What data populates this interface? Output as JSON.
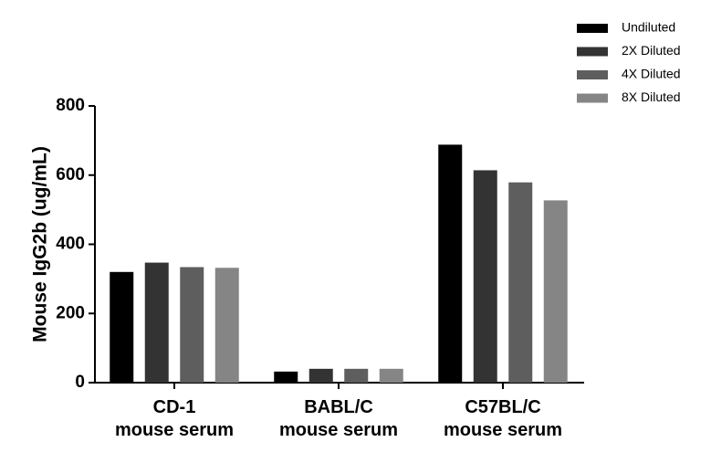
{
  "chart_data": {
    "type": "bar",
    "ylabel": "Mouse IgG2b (ug/mL)",
    "xlabel": "",
    "ylim": [
      0,
      800
    ],
    "yticks": [
      0,
      200,
      400,
      600,
      800
    ],
    "categories": [
      [
        "CD-1",
        "mouse serum"
      ],
      [
        "BABL/C",
        "mouse serum"
      ],
      [
        "C57BL/C",
        "mouse serum"
      ]
    ],
    "series": [
      {
        "name": "Undiluted",
        "color": "#000000",
        "values": [
          320,
          32,
          688
        ]
      },
      {
        "name": "2X Diluted",
        "color": "#333333",
        "values": [
          347,
          40,
          614
        ]
      },
      {
        "name": "4X Diluted",
        "color": "#5e5e5e",
        "values": [
          334,
          40,
          579
        ]
      },
      {
        "name": "8X Diluted",
        "color": "#858585",
        "values": [
          332,
          40,
          527
        ]
      }
    ],
    "legend_position": "top-right",
    "grid": false
  }
}
